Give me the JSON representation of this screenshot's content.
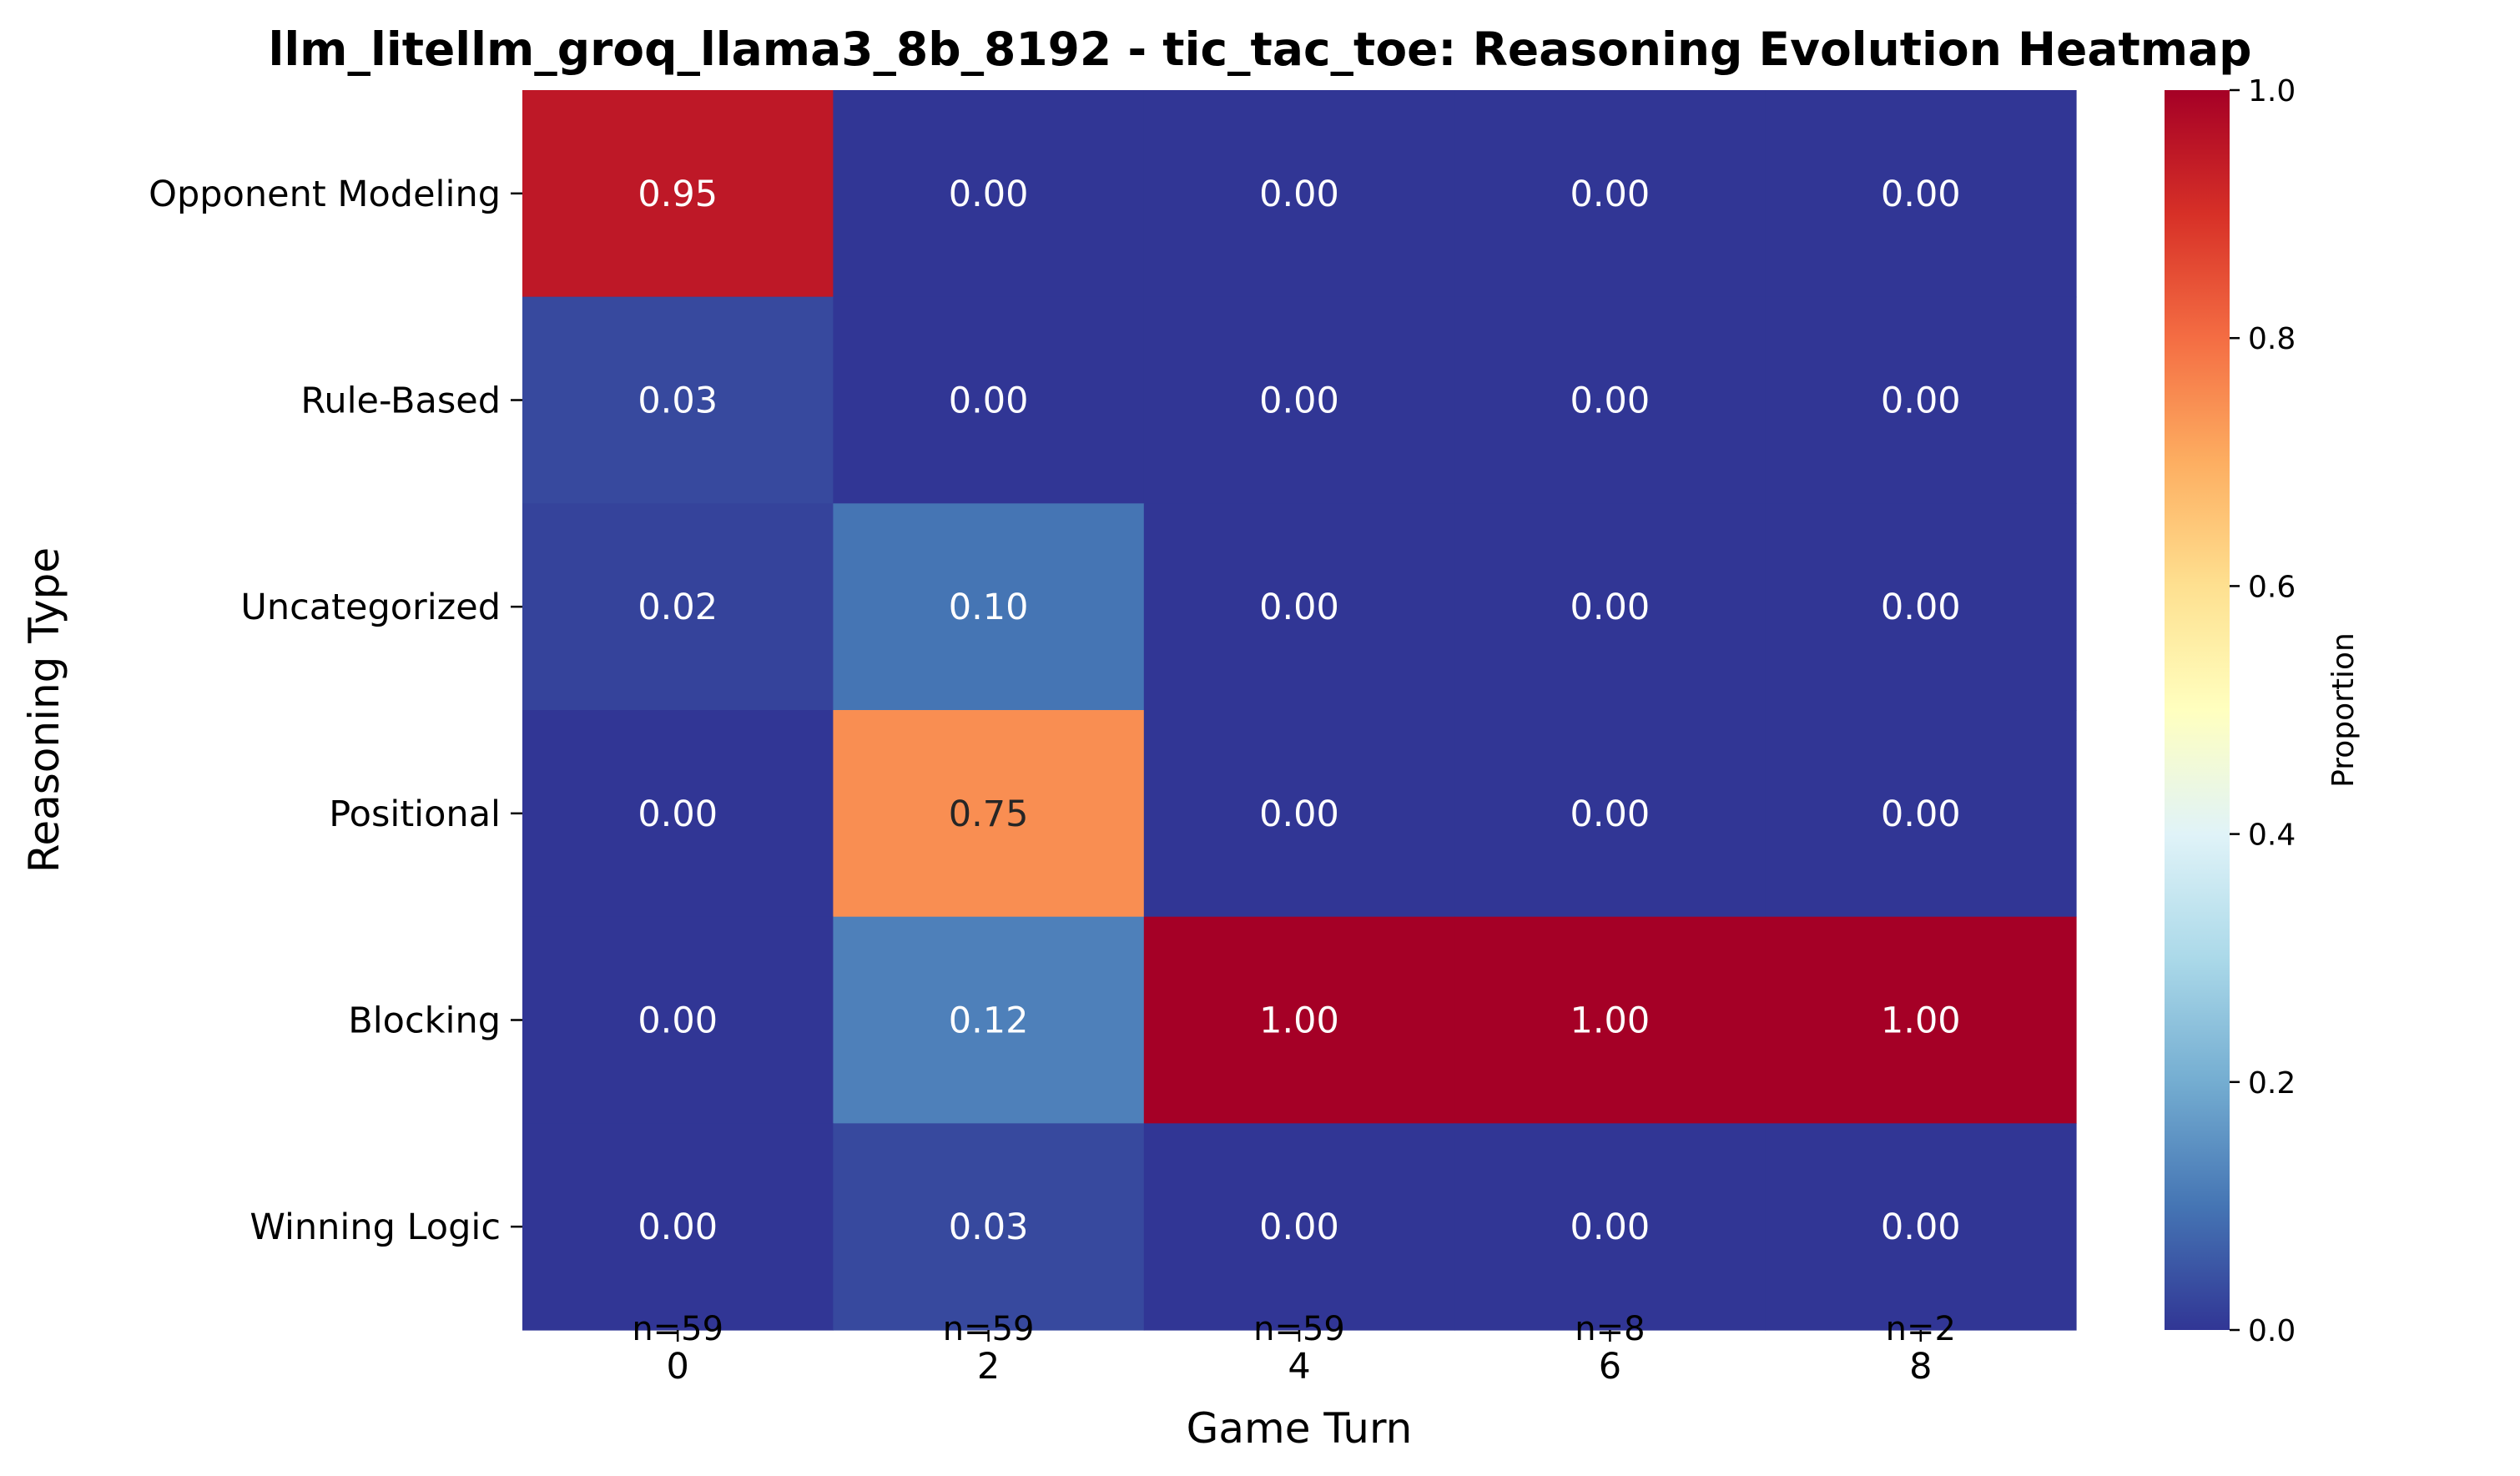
{
  "chart_data": {
    "type": "heatmap",
    "title": "llm_litellm_groq_llama3_8b_8192 - tic_tac_toe: Reasoning Evolution Heatmap",
    "xlabel": "Game Turn",
    "ylabel": "Reasoning Type",
    "x_categories": [
      "0",
      "2",
      "4",
      "6",
      "8"
    ],
    "y_categories": [
      "Opponent Modeling",
      "Rule-Based",
      "Uncategorized",
      "Positional",
      "Blocking",
      "Winning Logic"
    ],
    "values": [
      [
        0.95,
        0.0,
        0.0,
        0.0,
        0.0
      ],
      [
        0.03,
        0.0,
        0.0,
        0.0,
        0.0
      ],
      [
        0.02,
        0.1,
        0.0,
        0.0,
        0.0
      ],
      [
        0.0,
        0.75,
        0.0,
        0.0,
        0.0
      ],
      [
        0.0,
        0.12,
        1.0,
        1.0,
        1.0
      ],
      [
        0.0,
        0.03,
        0.0,
        0.0,
        0.0
      ]
    ],
    "cell_labels": [
      [
        "0.95",
        "0.00",
        "0.00",
        "0.00",
        "0.00"
      ],
      [
        "0.03",
        "0.00",
        "0.00",
        "0.00",
        "0.00"
      ],
      [
        "0.02",
        "0.10",
        "0.00",
        "0.00",
        "0.00"
      ],
      [
        "0.00",
        "0.75",
        "0.00",
        "0.00",
        "0.00"
      ],
      [
        "0.00",
        "0.12",
        "1.00",
        "1.00",
        "1.00"
      ],
      [
        "0.00",
        "0.03",
        "0.00",
        "0.00",
        "0.00"
      ]
    ],
    "sample_counts": [
      "n=59",
      "n=59",
      "n=59",
      "n=8",
      "n=2"
    ],
    "colorbar": {
      "label": "Proportion",
      "range": [
        0.0,
        1.0
      ],
      "ticks": [
        "0.0",
        "0.2",
        "0.4",
        "0.6",
        "0.8",
        "1.0"
      ],
      "colormap": "RdYlBu_r",
      "stops": [
        "#313695",
        "#4575b4",
        "#74add1",
        "#abd9e9",
        "#e0f3f8",
        "#ffffbf",
        "#fee090",
        "#fdae61",
        "#f46d43",
        "#d73027",
        "#a50026"
      ]
    },
    "grid": false
  }
}
